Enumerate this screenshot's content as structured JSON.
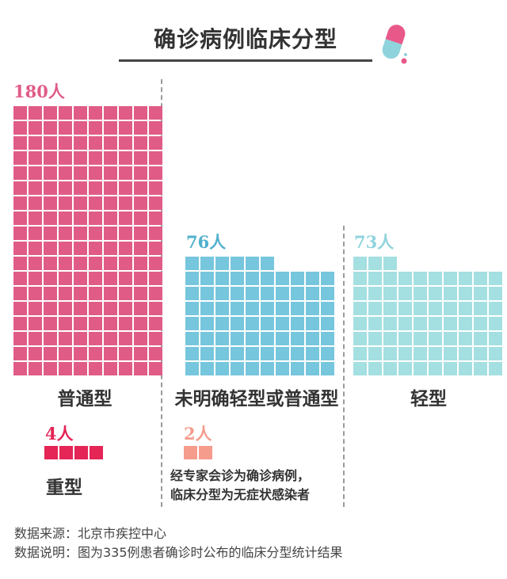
{
  "title": "确诊病例临床分型",
  "chart_data": {
    "type": "waffle",
    "unit": "人",
    "categories": [
      "普通型",
      "未明确轻型或普通型",
      "轻型",
      "重型",
      "经专家会诊为确诊病例，临床分型为无症状感染者"
    ],
    "values": [
      180,
      76,
      73,
      4,
      2
    ],
    "total": 335
  },
  "groups": {
    "common": {
      "count": "180人",
      "label": "普通型",
      "value": 180,
      "color": "#e05c87"
    },
    "unclear": {
      "count": "76人",
      "label": "未明确轻型或普通型",
      "value": 76,
      "color": "#76c6dd"
    },
    "mild": {
      "count": "73人",
      "label": "轻型",
      "value": 73,
      "color": "#a4dfe1"
    },
    "severe": {
      "count": "4人",
      "label": "重型",
      "value": 4,
      "color": "#e42556"
    },
    "asymptomatic": {
      "count": "2人",
      "value": 2,
      "color": "#f59c8d"
    }
  },
  "note": {
    "line1": "经专家会诊为确诊病例，",
    "line2": "临床分型为无症状感染者"
  },
  "footer": {
    "source": "数据来源：北京市疾控中心",
    "explain": "数据说明：图为335例患者确诊时公布的临床分型统计结果"
  },
  "pill_icon": "capsule-icon"
}
